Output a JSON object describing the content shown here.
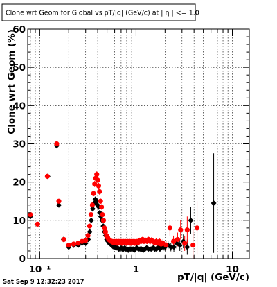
{
  "chart_data": {
    "type": "scatter",
    "title": "Clone wrt Geom for Global vs pT/|q| (GeV/c) at |  η | <= 1.0",
    "xlabel": "pT/|q| (GeV/c)",
    "ylabel": "Clone wrt Geom (%)",
    "xscale": "log",
    "xlim": [
      0.075,
      15
    ],
    "ylim": [
      0,
      60
    ],
    "grid": true,
    "x_major_ticks": [
      0.1,
      1,
      10
    ],
    "x_major_labels": [
      "10⁻¹",
      "1",
      "10"
    ],
    "y_ticks": [
      0,
      10,
      20,
      30,
      40,
      50,
      60
    ],
    "y_tick_labels": [
      "0",
      "10",
      "20",
      "30",
      "40",
      "50",
      "60"
    ],
    "series": [
      {
        "color": "#000000",
        "marker": "diamond",
        "points": [
          [
            0.08,
            11.0,
            0.5
          ],
          [
            0.094,
            9.0,
            0.4
          ],
          [
            0.121,
            21.5,
            0.5
          ],
          [
            0.15,
            29.5,
            0.6
          ],
          [
            0.158,
            14.0,
            0.5
          ],
          [
            0.177,
            5.0,
            0.3
          ],
          [
            0.2,
            3.0,
            0.3
          ],
          [
            0.226,
            3.5,
            0.3
          ],
          [
            0.251,
            3.5,
            0.3
          ],
          [
            0.275,
            4.0,
            0.3
          ],
          [
            0.3,
            4.0,
            0.3
          ],
          [
            0.318,
            5.0,
            0.4
          ],
          [
            0.331,
            7.0,
            0.5
          ],
          [
            0.343,
            10.0,
            0.6
          ],
          [
            0.355,
            13.0,
            0.7
          ],
          [
            0.367,
            14.5,
            0.7
          ],
          [
            0.378,
            15.5,
            0.7
          ],
          [
            0.388,
            15.0,
            0.7
          ],
          [
            0.398,
            14.0,
            0.7
          ],
          [
            0.41,
            13.5,
            0.7
          ],
          [
            0.421,
            12.0,
            0.7
          ],
          [
            0.432,
            11.0,
            0.7
          ],
          [
            0.444,
            10.0,
            0.6
          ],
          [
            0.457,
            8.5,
            0.6
          ],
          [
            0.47,
            7.0,
            0.6
          ],
          [
            0.484,
            6.0,
            0.5
          ],
          [
            0.498,
            5.0,
            0.5
          ],
          [
            0.512,
            4.5,
            0.5
          ],
          [
            0.527,
            4.0,
            0.5
          ],
          [
            0.542,
            3.8,
            0.5
          ],
          [
            0.558,
            3.5,
            0.5
          ],
          [
            0.574,
            3.2,
            0.5
          ],
          [
            0.59,
            3.0,
            0.5
          ],
          [
            0.607,
            3.0,
            0.5
          ],
          [
            0.625,
            2.8,
            0.5
          ],
          [
            0.643,
            2.8,
            0.5
          ],
          [
            0.662,
            2.5,
            0.5
          ],
          [
            0.681,
            2.5,
            0.5
          ],
          [
            0.701,
            2.8,
            0.5
          ],
          [
            0.721,
            2.5,
            0.5
          ],
          [
            0.742,
            2.5,
            0.5
          ],
          [
            0.763,
            2.8,
            0.5
          ],
          [
            0.785,
            2.5,
            0.5
          ],
          [
            0.808,
            2.5,
            0.5
          ],
          [
            0.831,
            2.2,
            0.5
          ],
          [
            0.855,
            2.5,
            0.5
          ],
          [
            0.88,
            2.5,
            0.5
          ],
          [
            0.905,
            2.5,
            0.6
          ],
          [
            0.931,
            2.5,
            0.6
          ],
          [
            0.958,
            2.2,
            0.6
          ],
          [
            0.986,
            2.5,
            0.6
          ],
          [
            1.02,
            2.8,
            0.6
          ],
          [
            1.06,
            2.5,
            0.6
          ],
          [
            1.1,
            2.5,
            0.6
          ],
          [
            1.14,
            2.5,
            0.6
          ],
          [
            1.19,
            2.2,
            0.6
          ],
          [
            1.24,
            2.5,
            0.6
          ],
          [
            1.29,
            2.8,
            0.7
          ],
          [
            1.34,
            2.5,
            0.7
          ],
          [
            1.4,
            2.5,
            0.7
          ],
          [
            1.45,
            2.5,
            0.7
          ],
          [
            1.51,
            2.8,
            0.7
          ],
          [
            1.57,
            2.5,
            0.7
          ],
          [
            1.63,
            2.5,
            0.8
          ],
          [
            1.7,
            3.0,
            0.8
          ],
          [
            1.77,
            2.5,
            0.8
          ],
          [
            1.84,
            3.0,
            0.8
          ],
          [
            1.92,
            3.0,
            0.9
          ],
          [
            2.0,
            3.0,
            1.0
          ],
          [
            2.15,
            3.5,
            1.0
          ],
          [
            2.3,
            3.0,
            1.1
          ],
          [
            2.47,
            3.0,
            1.2
          ],
          [
            2.65,
            4.0,
            1.4
          ],
          [
            2.85,
            3.5,
            1.5
          ],
          [
            3.1,
            4.5,
            1.8
          ],
          [
            3.4,
            3.0,
            2.0
          ],
          [
            3.7,
            10.0,
            3.5
          ],
          [
            6.4,
            14.5,
            13.0
          ]
        ]
      },
      {
        "color": "#ff0000",
        "marker": "circle",
        "points": [
          [
            0.08,
            11.5,
            0.5
          ],
          [
            0.095,
            9.0,
            0.4
          ],
          [
            0.12,
            21.5,
            0.5
          ],
          [
            0.15,
            30.0,
            0.6
          ],
          [
            0.158,
            15.0,
            0.5
          ],
          [
            0.178,
            5.0,
            0.3
          ],
          [
            0.2,
            3.5,
            0.3
          ],
          [
            0.225,
            3.8,
            0.3
          ],
          [
            0.25,
            4.0,
            0.3
          ],
          [
            0.275,
            4.5,
            0.3
          ],
          [
            0.3,
            4.8,
            0.3
          ],
          [
            0.317,
            6.0,
            0.4
          ],
          [
            0.33,
            8.5,
            0.5
          ],
          [
            0.341,
            11.5,
            0.6
          ],
          [
            0.352,
            14.0,
            0.7
          ],
          [
            0.362,
            17.0,
            0.7
          ],
          [
            0.372,
            19.5,
            0.8
          ],
          [
            0.382,
            21.0,
            0.8
          ],
          [
            0.391,
            22.0,
            0.8
          ],
          [
            0.4,
            20.5,
            0.8
          ],
          [
            0.409,
            19.0,
            0.8
          ],
          [
            0.418,
            17.5,
            0.8
          ],
          [
            0.428,
            15.0,
            0.7
          ],
          [
            0.438,
            13.5,
            0.7
          ],
          [
            0.448,
            11.5,
            0.7
          ],
          [
            0.459,
            10.0,
            0.6
          ],
          [
            0.47,
            8.0,
            0.6
          ],
          [
            0.482,
            7.0,
            0.6
          ],
          [
            0.494,
            6.0,
            0.5
          ],
          [
            0.507,
            5.5,
            0.5
          ],
          [
            0.521,
            5.0,
            0.5
          ],
          [
            0.535,
            4.8,
            0.5
          ],
          [
            0.55,
            4.5,
            0.5
          ],
          [
            0.565,
            4.5,
            0.5
          ],
          [
            0.58,
            4.2,
            0.5
          ],
          [
            0.596,
            4.5,
            0.5
          ],
          [
            0.612,
            4.2,
            0.5
          ],
          [
            0.628,
            4.5,
            0.5
          ],
          [
            0.645,
            4.0,
            0.5
          ],
          [
            0.662,
            4.5,
            0.5
          ],
          [
            0.68,
            4.2,
            0.5
          ],
          [
            0.698,
            4.5,
            0.5
          ],
          [
            0.716,
            4.0,
            0.5
          ],
          [
            0.735,
            4.5,
            0.5
          ],
          [
            0.754,
            4.2,
            0.5
          ],
          [
            0.774,
            4.5,
            0.5
          ],
          [
            0.794,
            4.0,
            0.5
          ],
          [
            0.815,
            4.5,
            0.5
          ],
          [
            0.836,
            4.2,
            0.6
          ],
          [
            0.858,
            4.5,
            0.6
          ],
          [
            0.88,
            4.0,
            0.6
          ],
          [
            0.903,
            4.5,
            0.6
          ],
          [
            0.926,
            4.2,
            0.6
          ],
          [
            0.95,
            4.5,
            0.6
          ],
          [
            0.975,
            4.0,
            0.6
          ],
          [
            1.01,
            4.5,
            0.6
          ],
          [
            1.05,
            4.2,
            0.6
          ],
          [
            1.09,
            4.8,
            0.6
          ],
          [
            1.13,
            4.5,
            0.7
          ],
          [
            1.17,
            5.0,
            0.7
          ],
          [
            1.21,
            4.5,
            0.7
          ],
          [
            1.25,
            4.8,
            0.7
          ],
          [
            1.3,
            4.5,
            0.7
          ],
          [
            1.35,
            5.0,
            0.7
          ],
          [
            1.4,
            4.5,
            0.8
          ],
          [
            1.45,
            4.8,
            0.8
          ],
          [
            1.5,
            4.5,
            0.8
          ],
          [
            1.56,
            4.2,
            0.8
          ],
          [
            1.62,
            4.5,
            0.9
          ],
          [
            1.68,
            4.0,
            0.9
          ],
          [
            1.75,
            4.5,
            0.9
          ],
          [
            1.82,
            3.8,
            1.0
          ],
          [
            1.9,
            4.0,
            1.0
          ],
          [
            2.05,
            3.5,
            1.1
          ],
          [
            2.25,
            8.0,
            2.0
          ],
          [
            2.45,
            4.5,
            1.5
          ],
          [
            2.7,
            5.0,
            1.8
          ],
          [
            2.9,
            7.5,
            2.5
          ],
          [
            3.2,
            4.0,
            2.0
          ],
          [
            3.4,
            7.5,
            3.5
          ],
          [
            3.9,
            3.5,
            4.0
          ],
          [
            4.3,
            8.0,
            7.0
          ]
        ]
      }
    ]
  },
  "footer": {
    "timestamp": "Sat Sep  9 12:32:23 2017"
  }
}
